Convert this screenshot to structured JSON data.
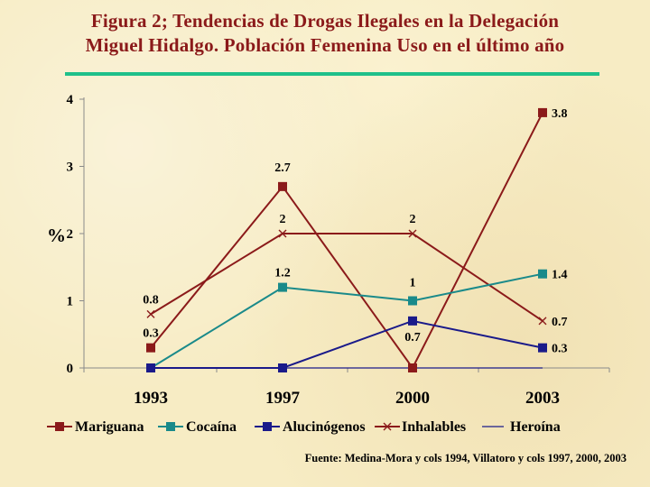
{
  "title_line1": "Figura 2; Tendencias de Drogas Ilegales en  la Delegación",
  "title_line2": "Miguel Hidalgo. Población Femenina Uso en el último año",
  "source": "Fuente: Medina-Mora y cols 1994, Villatoro y cols 1997, 2000, 2003",
  "colors": {
    "title": "#8b1a1a",
    "rule": "#1fc08a"
  },
  "chart_data": {
    "type": "line",
    "categories": [
      "1993",
      "1997",
      "2000",
      "2003"
    ],
    "ylabel": "%",
    "ylim": [
      0,
      4
    ],
    "yticks": [
      "0",
      "1",
      "2",
      "3",
      "4"
    ],
    "grid": false,
    "legend_position": "bottom",
    "series": [
      {
        "name": "Mariguana",
        "values": [
          0.3,
          2.7,
          0,
          3.8
        ],
        "labels": [
          "0.3",
          "2.7",
          "",
          "3.8"
        ],
        "color": "#8b1a1a",
        "marker": "square"
      },
      {
        "name": "Cocaína",
        "values": [
          0,
          1.2,
          1,
          1.4
        ],
        "labels": [
          "",
          "1.2",
          "1",
          "1.4"
        ],
        "color": "#1a8a8a",
        "marker": "square"
      },
      {
        "name": "Alucinógenos",
        "values": [
          0,
          0,
          0.7,
          0.3
        ],
        "labels": [
          "",
          "",
          "0.7",
          "0.3"
        ],
        "color": "#1a1a8a",
        "marker": "square"
      },
      {
        "name": "Inhalables",
        "values": [
          0.8,
          2,
          2,
          0.7
        ],
        "labels": [
          "0.8",
          "2",
          "2",
          "0.7"
        ],
        "color": "#8b1a1a",
        "marker": "x"
      },
      {
        "name": "Heroína",
        "values": [
          0,
          0,
          0,
          0
        ],
        "labels": [
          "",
          "",
          "",
          ""
        ],
        "color": "#1a1a8a",
        "marker": "dash"
      }
    ]
  }
}
